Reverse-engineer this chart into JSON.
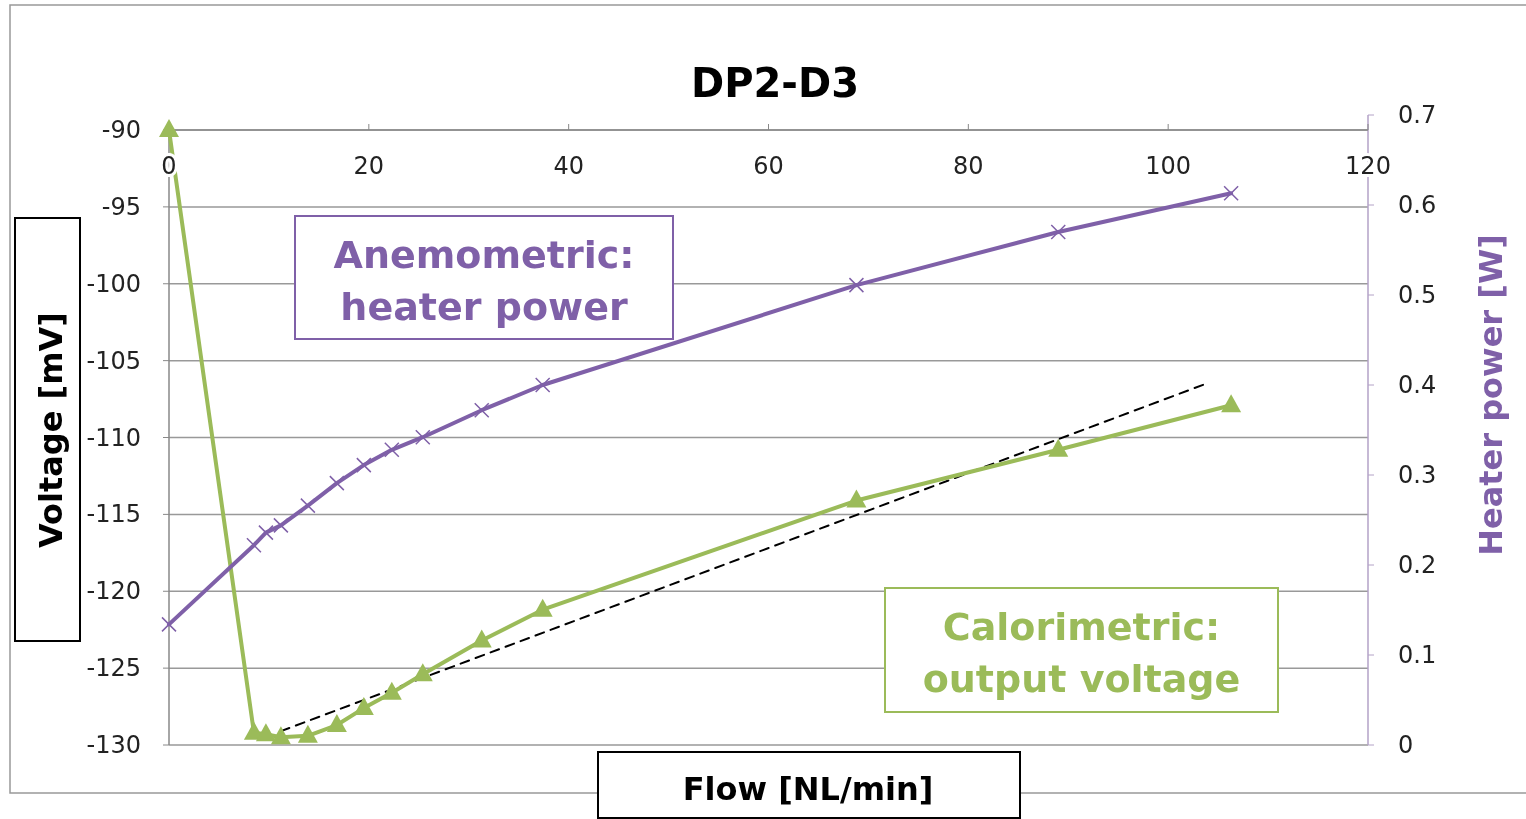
{
  "chart_data": {
    "type": "line",
    "title": "DP2-D3",
    "xlabel": "Flow [NL/min]",
    "ylabel": "Voltage [mV]",
    "y2label": "Heater power [W]",
    "xlim": [
      0,
      120
    ],
    "xticks": [
      0,
      20,
      40,
      60,
      80,
      100,
      120
    ],
    "ylim": [
      -130,
      -90
    ],
    "yticks": [
      -130,
      -125,
      -120,
      -115,
      -110,
      -105,
      -100,
      -95,
      -90
    ],
    "y2lim": [
      0,
      0.7
    ],
    "y2ticks": [
      0,
      0.1,
      0.2,
      0.3,
      0.4,
      0.5,
      0.6,
      0.7
    ],
    "grid": "y",
    "annotations": [
      "Anemometric: heater power",
      "Calorimetric: output voltage"
    ],
    "series": [
      {
        "color": "#7f60a8",
        "axis": "y2",
        "marker": "cross",
        "x": [
          0,
          8.5,
          9.7,
          11.2,
          13.9,
          16.8,
          19.5,
          22.3,
          25.4,
          31.3,
          37.4,
          68.8,
          89.0,
          106.3
        ],
        "values": [
          0.134,
          0.222,
          0.236,
          0.244,
          0.266,
          0.291,
          0.311,
          0.328,
          0.342,
          0.372,
          0.4,
          0.511,
          0.57,
          0.613
        ]
      },
      {
        "color": "#9bbb59",
        "axis": "y",
        "marker": "triangle",
        "x": [
          0,
          8.5,
          9.7,
          11.2,
          13.9,
          16.8,
          19.5,
          22.3,
          25.4,
          31.3,
          37.4,
          68.8,
          89.0,
          106.3
        ],
        "values": [
          -90,
          -129.2,
          -129.3,
          -129.5,
          -129.4,
          -128.7,
          -127.6,
          -126.6,
          -125.4,
          -123.2,
          -121.2,
          -114.1,
          -110.8,
          -107.9
        ]
      },
      {
        "color": "#000000",
        "axis": "y",
        "marker": "none",
        "line_style": "dashed",
        "x": [
          11.2,
          103.8
        ],
        "values": [
          -129.1,
          -106.5
        ]
      }
    ]
  }
}
